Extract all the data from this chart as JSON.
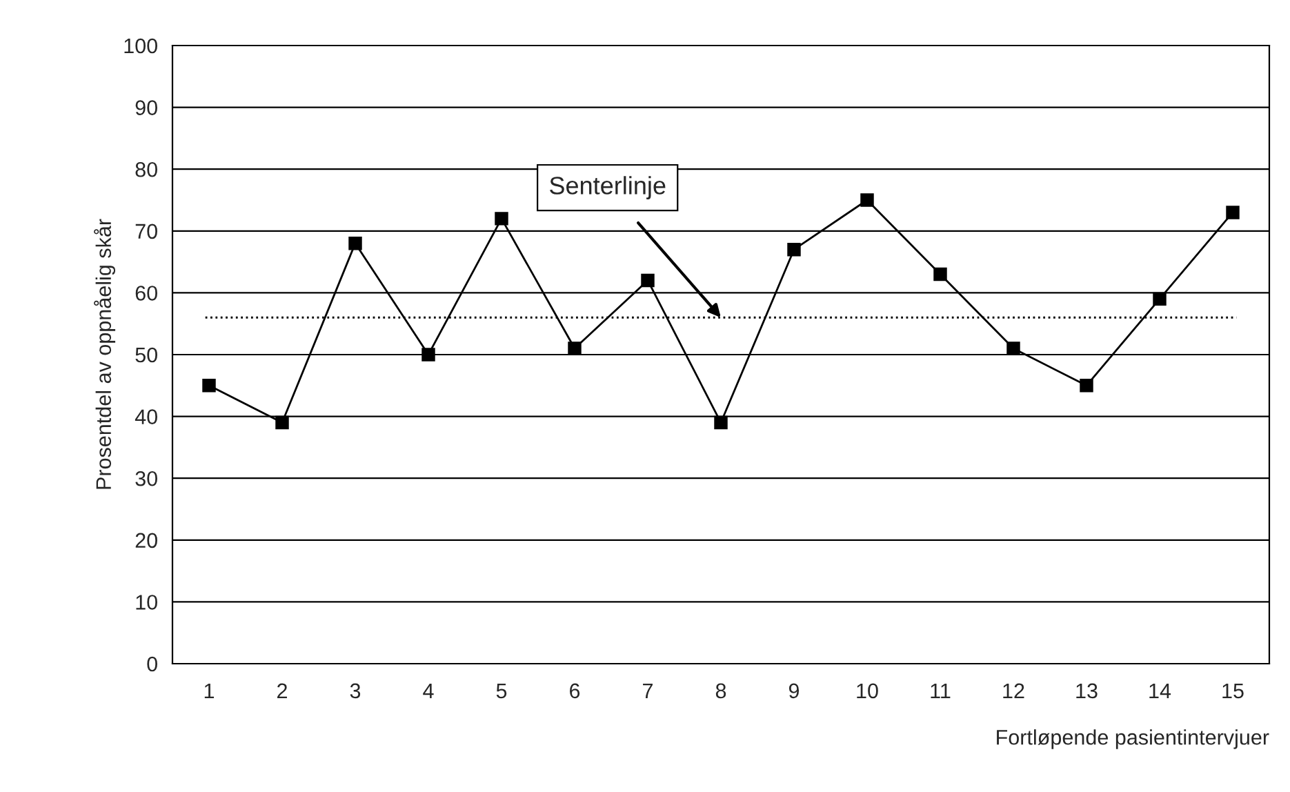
{
  "chart_data": {
    "type": "line",
    "categories": [
      "1",
      "2",
      "3",
      "4",
      "5",
      "6",
      "7",
      "8",
      "9",
      "10",
      "11",
      "12",
      "13",
      "14",
      "15"
    ],
    "series": [
      {
        "color": "#000000",
        "values": [
          45,
          39,
          68,
          50,
          72,
          51,
          62,
          39,
          67,
          75,
          63,
          51,
          45,
          59,
          73
        ]
      }
    ],
    "xlabel": "Fortløpende pasientintervjuer",
    "ylabel": "Prosentdel av oppnåelig skår",
    "ylim": [
      0,
      100
    ],
    "yticks": [
      0,
      10,
      20,
      30,
      40,
      50,
      60,
      70,
      80,
      90,
      100
    ],
    "grid": "y",
    "marker": "square",
    "line_style": "solid",
    "legend": false,
    "ref_lines": [
      {
        "axis": "y",
        "value": 56,
        "color": "#000000",
        "line_style": "dotted"
      }
    ],
    "annotations": [
      {
        "text": "Senterlinje",
        "x": "8",
        "y": 56
      }
    ]
  }
}
